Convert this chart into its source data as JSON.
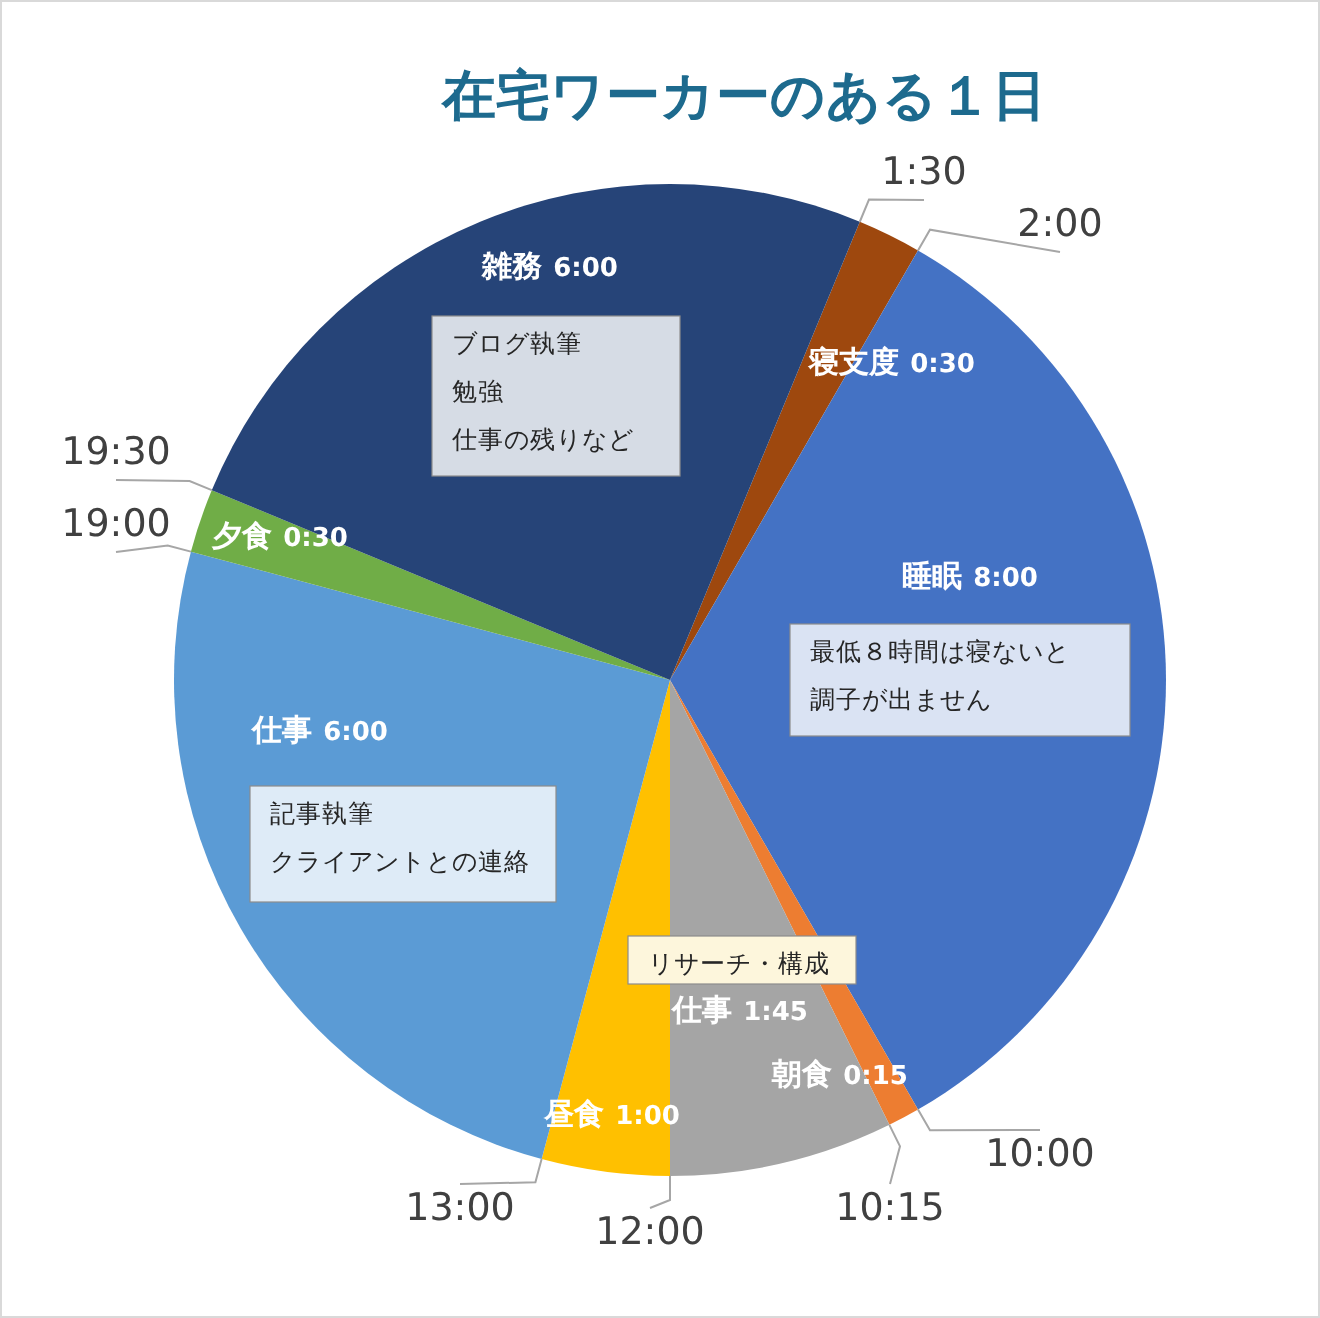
{
  "chart_data": {
    "type": "pie",
    "title": "在宅ワーカーのある１日",
    "categories": [
      "寝支度",
      "睡眠",
      "朝食",
      "仕事",
      "昼食",
      "仕事",
      "夕食",
      "雑務"
    ],
    "values": [
      0.5,
      8,
      0.25,
      1.75,
      1,
      6,
      0.5,
      6
    ],
    "value_labels": [
      "0:30",
      "8:00",
      "0:15",
      "1:45",
      "1:00",
      "6:00",
      "0:30",
      "6:00"
    ],
    "colors": [
      "#9e480e",
      "#4472c4",
      "#ed7d31",
      "#a5a5a5",
      "#ffc000",
      "#5b9bd5",
      "#70ad47",
      "#264478"
    ],
    "annotations": [
      "1:30",
      "2:00",
      "10:00",
      "10:15",
      "12:00",
      "13:00",
      "19:00",
      "19:30",
      "ブログ執筆",
      "勉強",
      "仕事の残りなど",
      "最低８時間は寝ないと",
      "調子が出ません",
      "リサーチ・構成",
      "記事執筆",
      "クライアントとの連絡"
    ],
    "legend": false
  }
}
